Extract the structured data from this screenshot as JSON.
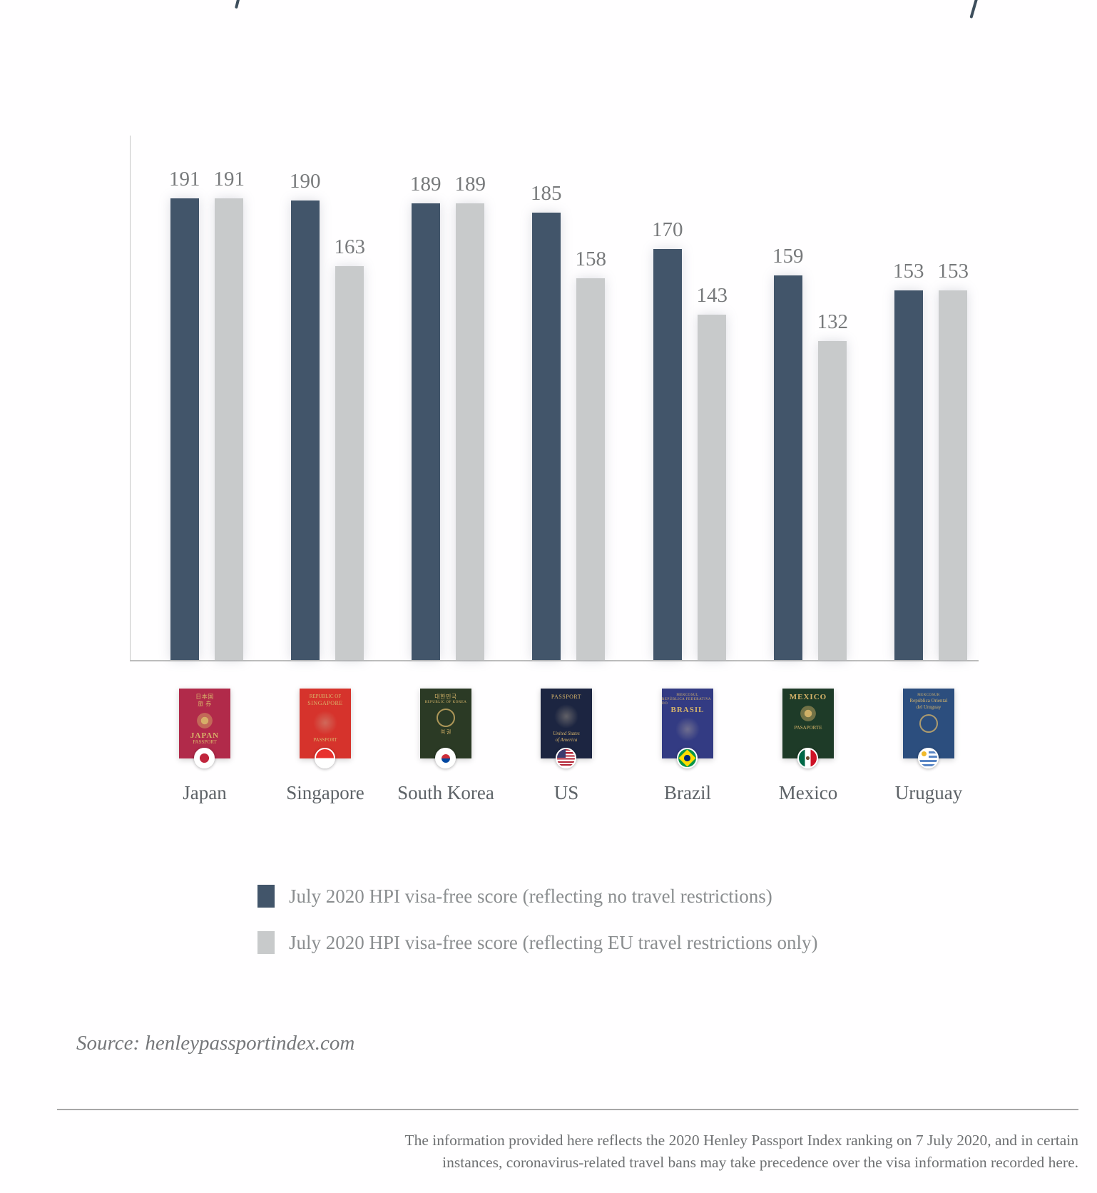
{
  "chart_data": {
    "type": "bar",
    "categories": [
      "Japan",
      "Singapore",
      "South Korea",
      "US",
      "Brazil",
      "Mexico",
      "Uruguay"
    ],
    "series": [
      {
        "name": "July 2020 HPI visa-free score (reflecting no travel restrictions)",
        "color": "#42556a",
        "values": [
          191,
          190,
          189,
          185,
          170,
          159,
          153
        ]
      },
      {
        "name": "July 2020 HPI visa-free score (reflecting EU travel restrictions only)",
        "color": "#c8cacb",
        "values": [
          191,
          163,
          189,
          158,
          143,
          132,
          153
        ]
      }
    ],
    "ylim": [
      0,
      200
    ],
    "grid": false,
    "value_labels": true,
    "legend_position": "bottom",
    "xlabel": "",
    "ylabel": ""
  },
  "legend": {
    "items": [
      {
        "label": "July 2020 HPI visa-free score (reflecting no travel restrictions)",
        "color": "#42556a"
      },
      {
        "label": "July 2020 HPI visa-free score (reflecting EU travel restrictions only)",
        "color": "#c8cacb"
      }
    ]
  },
  "passports": [
    {
      "country": "Japan",
      "cover_color": "#b12a4a",
      "line1": "日本国",
      "line2": "旅 券",
      "name_text": "JAPAN",
      "sub_text": "PASSPORT"
    },
    {
      "country": "Singapore",
      "cover_color": "#d6332c",
      "line1": "REPUBLIC OF",
      "line2": "SINGAPORE",
      "sub_text": "PASSPORT"
    },
    {
      "country": "South Korea",
      "cover_color": "#2b3a25",
      "line1": "대한민국",
      "line2": "REPUBLIC OF KOREA",
      "sub_text": "여 권"
    },
    {
      "country": "US",
      "cover_color": "#1c2541",
      "line1": "PASSPORT",
      "sub_text": "United States",
      "sub_text2": "of America"
    },
    {
      "country": "Brazil",
      "cover_color": "#333b83",
      "line0": "MERCOSUL",
      "line1": "REPÚBLICA FEDERATIVA DO",
      "line2": "BRASIL"
    },
    {
      "country": "Mexico",
      "cover_color": "#1e3b28",
      "line1": "MEXICO",
      "sub_text": "PASAPORTE"
    },
    {
      "country": "Uruguay",
      "cover_color": "#2c4e7e",
      "line0": "MERCOSUR",
      "line1": "República Oriental",
      "line2": "del Uruguay"
    }
  ],
  "source": "Source: henleypassportindex.com",
  "footer": {
    "line1": "The information provided here reflects the 2020 Henley Passport Index ranking on 7 July 2020, and in certain",
    "line2": "instances, coronavirus-related travel bans may take precedence over the visa information recorded here."
  }
}
